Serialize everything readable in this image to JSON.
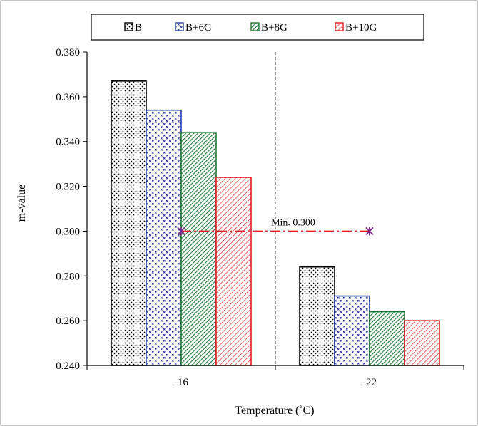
{
  "chart_data": {
    "type": "bar",
    "title": "",
    "xlabel": "Temperature (˚C)",
    "ylabel": "m-value",
    "categories": [
      "-16",
      "-22"
    ],
    "series": [
      {
        "name": "B",
        "values": [
          0.367,
          0.284
        ],
        "color": "#000000",
        "pattern": "dots"
      },
      {
        "name": "B+6G",
        "values": [
          0.354,
          0.271
        ],
        "color": "#2b3fa8",
        "pattern": "crosses"
      },
      {
        "name": "B+8G",
        "values": [
          0.344,
          0.264
        ],
        "color": "#1f7a35",
        "pattern": "diagonal-dense"
      },
      {
        "name": "B+10G",
        "values": [
          0.324,
          0.26
        ],
        "color": "#e02020",
        "pattern": "diagonal-wide"
      }
    ],
    "ylim": [
      0.24,
      0.38
    ],
    "yticks": [
      "0.240",
      "0.260",
      "0.280",
      "0.300",
      "0.320",
      "0.340",
      "0.360",
      "0.380"
    ],
    "grid": "vertical dashed line between categories",
    "legend_position": "top",
    "threshold": {
      "value": 0.3,
      "label": "Min. 0.300",
      "color": "#e02020",
      "marker_color": "#7a2a8a"
    }
  }
}
